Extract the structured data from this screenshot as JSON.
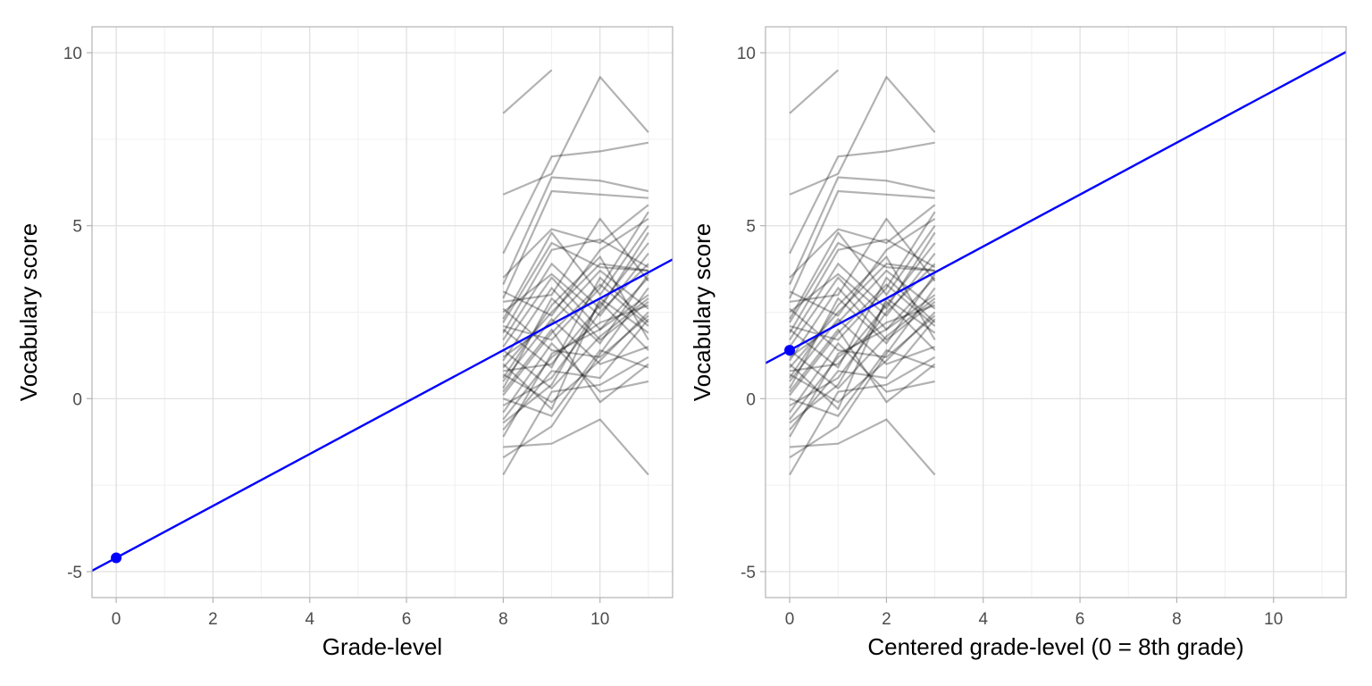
{
  "chart_data": [
    {
      "type": "line",
      "title": "",
      "xlabel": "Grade-level",
      "ylabel": "Vocabulary score",
      "xlim": [
        -0.5,
        11.5
      ],
      "ylim": [
        -5.75,
        10.75
      ],
      "x_ticks": [
        0,
        2,
        4,
        6,
        8,
        10
      ],
      "x_tick_labels": [
        "0",
        "2",
        "4",
        "6",
        "8",
        "10"
      ],
      "y_ticks": [
        -5,
        0,
        5,
        10
      ],
      "y_tick_labels": [
        "-5",
        "0",
        "5",
        "10"
      ],
      "grid": true,
      "individual_x": [
        8,
        9,
        10,
        11
      ],
      "individual_series": "individual_trajectories",
      "fit_line": {
        "intercept": -4.6,
        "slope": 0.75,
        "color": "#0000ff"
      },
      "intercept_point": {
        "x": 0,
        "y": -4.6,
        "color": "#0000ff"
      }
    },
    {
      "type": "line",
      "title": "",
      "xlabel": "Centered grade-level (0 = 8th grade)",
      "ylabel": "Vocabulary score",
      "xlim": [
        -0.5,
        11.5
      ],
      "ylim": [
        -5.75,
        10.75
      ],
      "x_ticks": [
        0,
        2,
        4,
        6,
        8,
        10
      ],
      "x_tick_labels": [
        "0",
        "2",
        "4",
        "6",
        "8",
        "10"
      ],
      "y_ticks": [
        -5,
        0,
        5,
        10
      ],
      "y_tick_labels": [
        "-5",
        "0",
        "5",
        "10"
      ],
      "grid": true,
      "individual_x": [
        0,
        1,
        2,
        3
      ],
      "individual_series": "individual_trajectories",
      "fit_line": {
        "intercept": 1.4,
        "slope": 0.75,
        "color": "#0000ff"
      },
      "intercept_point": {
        "x": 0,
        "y": 1.4,
        "color": "#0000ff"
      }
    }
  ],
  "individual_trajectories": [
    [
      8.25,
      9.5,
      null,
      null
    ],
    [
      5.9,
      6.5,
      9.3,
      7.7
    ],
    [
      4.2,
      7.0,
      7.15,
      7.4
    ],
    [
      3.3,
      6.4,
      6.3,
      6.0
    ],
    [
      2.9,
      6.0,
      5.9,
      5.8
    ],
    [
      3.5,
      4.9,
      4.5,
      5.6
    ],
    [
      2.3,
      4.8,
      3.0,
      5.0
    ],
    [
      1.9,
      4.3,
      4.6,
      3.8
    ],
    [
      2.8,
      3.0,
      5.2,
      3.4
    ],
    [
      2.5,
      3.6,
      2.4,
      4.2
    ],
    [
      0.9,
      2.5,
      3.9,
      3.7
    ],
    [
      2.1,
      1.7,
      3.2,
      5.4
    ],
    [
      1.5,
      3.5,
      2.0,
      3.0
    ],
    [
      1.2,
      2.2,
      3.7,
      2.6
    ],
    [
      0.3,
      2.9,
      1.6,
      3.6
    ],
    [
      0.8,
      1.0,
      2.7,
      4.5
    ],
    [
      2.6,
      1.4,
      1.2,
      2.4
    ],
    [
      0.1,
      1.9,
      3.3,
      2.1
    ],
    [
      -0.2,
      0.6,
      2.5,
      3.9
    ],
    [
      1.4,
      0.3,
      1.8,
      2.9
    ],
    [
      0.5,
      2.3,
      1.0,
      1.5
    ],
    [
      -0.6,
      1.2,
      2.2,
      2.7
    ],
    [
      1.0,
      -0.3,
      2.9,
      1.9
    ],
    [
      -0.9,
      0.8,
      0.6,
      2.3
    ],
    [
      0.0,
      -0.5,
      1.4,
      0.9
    ],
    [
      -1.4,
      -1.3,
      -0.6,
      -2.2
    ],
    [
      -2.2,
      0.2,
      0.4,
      1.2
    ],
    [
      -1.7,
      -0.8,
      1.3,
      3.2
    ],
    [
      -0.4,
      1.6,
      0.2,
      0.5
    ],
    [
      0.6,
      2.7,
      4.1,
      1.7
    ],
    [
      1.7,
      3.9,
      2.6,
      4.8
    ],
    [
      2.0,
      0.9,
      3.5,
      2.2
    ],
    [
      -1.1,
      1.3,
      2.0,
      3.5
    ],
    [
      0.2,
      2.0,
      -0.1,
      1.0
    ],
    [
      3.1,
      2.4,
      4.3,
      5.2
    ],
    [
      1.1,
      3.2,
      1.7,
      2.8
    ],
    [
      -0.7,
      0.4,
      2.8,
      1.4
    ],
    [
      2.2,
      4.5,
      3.8,
      3.7
    ],
    [
      0.7,
      -0.1,
      1.1,
      2.5
    ]
  ]
}
